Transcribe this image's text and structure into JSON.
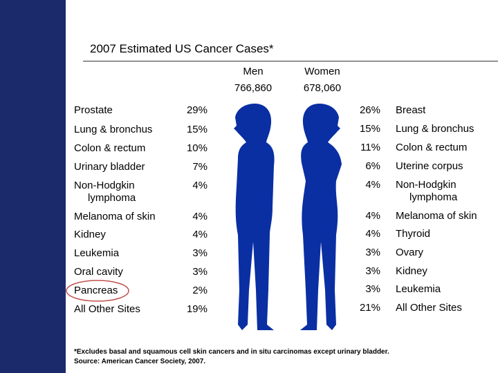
{
  "title": "2007 Estimated US Cancer Cases*",
  "men": {
    "header": "Men",
    "total": "766,860",
    "rows": [
      [
        "Prostate",
        "29%"
      ],
      [
        "Lung & bronchus",
        "15%"
      ],
      [
        "Colon & rectum",
        "10%"
      ],
      [
        "Urinary bladder",
        "7%"
      ],
      [
        "Non-Hodgkin\nlymphoma",
        "4%"
      ],
      [
        "Melanoma of skin",
        "4%"
      ],
      [
        "Kidney",
        "4%"
      ],
      [
        "Leukemia",
        "3%"
      ],
      [
        "Oral cavity",
        "3%"
      ],
      [
        "Pancreas",
        "2%"
      ],
      [
        "All Other Sites",
        "19%"
      ]
    ]
  },
  "women": {
    "header": "Women",
    "total": "678,060",
    "rows": [
      [
        "Breast",
        "26%"
      ],
      [
        "Lung & bronchus",
        "15%"
      ],
      [
        "Colon & rectum",
        "11%"
      ],
      [
        "Uterine corpus",
        "6%"
      ],
      [
        "Non-Hodgkin\nlymphoma",
        "4%"
      ],
      [
        "Melanoma of skin",
        "4%"
      ],
      [
        "Thyroid",
        "4%"
      ],
      [
        "Ovary",
        "3%"
      ],
      [
        "Kidney",
        "3%"
      ],
      [
        "Leukemia",
        "3%"
      ],
      [
        "All Other Sites",
        "21%"
      ]
    ]
  },
  "footnote": [
    "*Excludes basal and squamous cell skin cancers and in situ carcinomas except urinary bladder.",
    "Source: American Cancer Society, 2007."
  ]
}
